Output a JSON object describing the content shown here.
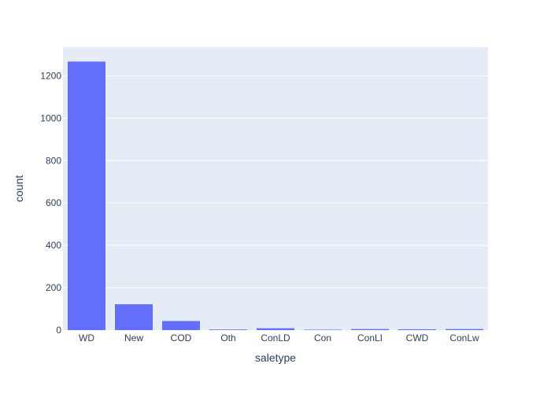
{
  "chart_data": {
    "type": "bar",
    "title": "",
    "xlabel": "saletype",
    "ylabel": "count",
    "categories": [
      "WD",
      "New",
      "COD",
      "Oth",
      "ConLD",
      "Con",
      "ConLI",
      "CWD",
      "ConLw"
    ],
    "values": [
      1267,
      122,
      43,
      3,
      9,
      2,
      5,
      4,
      5
    ],
    "ylim": [
      0,
      1335
    ],
    "yticks": [
      0,
      200,
      400,
      600,
      800,
      1000,
      1200
    ],
    "grid": true,
    "legend": "none",
    "colors": {
      "bar": "#636efa",
      "plot_background": "#e5ecf6",
      "grid": "#ffffff",
      "text": "#2a3f5f"
    }
  }
}
